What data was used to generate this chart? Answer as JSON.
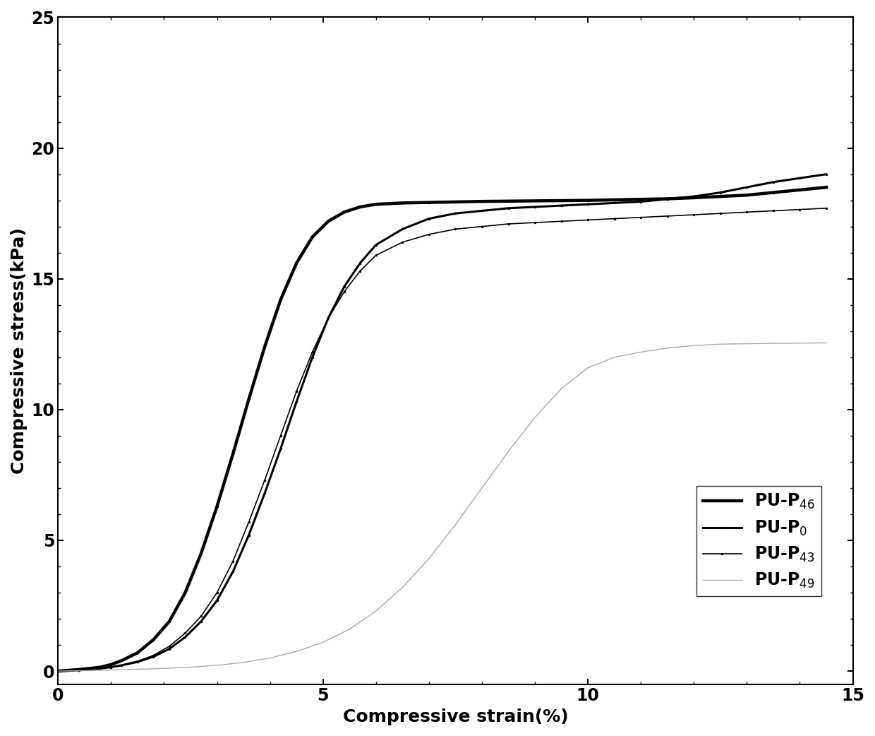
{
  "xlabel": "Compressive strain(%)",
  "ylabel": "Compressive stress(kPa)",
  "xlim": [
    0,
    15
  ],
  "ylim": [
    -0.5,
    25
  ],
  "xticks": [
    0,
    5,
    10,
    15
  ],
  "yticks": [
    0,
    5,
    10,
    15,
    20,
    25
  ],
  "background_color": "#ffffff",
  "legend_labels": [
    "PU-P$_0$",
    "PU-P$_{43}$",
    "PU-P$_{46}$",
    "PU-P$_{49}$"
  ],
  "series": {
    "PU_P0": {
      "color": "#000000",
      "linewidth": 2.2,
      "linestyle": "-",
      "marker": ".",
      "markersize": 3,
      "x": [
        0,
        0.2,
        0.4,
        0.6,
        0.8,
        1.0,
        1.2,
        1.5,
        1.8,
        2.1,
        2.4,
        2.7,
        3.0,
        3.3,
        3.6,
        3.9,
        4.2,
        4.5,
        4.8,
        5.1,
        5.4,
        5.7,
        6.0,
        6.5,
        7.0,
        7.5,
        8.0,
        8.5,
        9.0,
        9.5,
        10.0,
        10.5,
        11.0,
        11.5,
        12.0,
        12.5,
        13.0,
        13.5,
        14.0,
        14.5
      ],
      "y": [
        0,
        0.02,
        0.04,
        0.07,
        0.1,
        0.15,
        0.22,
        0.35,
        0.55,
        0.85,
        1.3,
        1.9,
        2.7,
        3.8,
        5.2,
        6.8,
        8.5,
        10.3,
        12.0,
        13.5,
        14.7,
        15.6,
        16.3,
        16.9,
        17.3,
        17.5,
        17.6,
        17.7,
        17.75,
        17.8,
        17.85,
        17.9,
        17.95,
        18.05,
        18.15,
        18.3,
        18.5,
        18.7,
        18.85,
        19.0
      ]
    },
    "PU_P43": {
      "color": "#000000",
      "linewidth": 1.2,
      "linestyle": "-",
      "marker": ".",
      "markersize": 3,
      "x": [
        0,
        0.2,
        0.4,
        0.6,
        0.8,
        1.0,
        1.2,
        1.5,
        1.8,
        2.1,
        2.4,
        2.7,
        3.0,
        3.3,
        3.6,
        3.9,
        4.2,
        4.5,
        4.8,
        5.1,
        5.4,
        5.7,
        6.0,
        6.5,
        7.0,
        7.5,
        8.0,
        8.5,
        9.0,
        9.5,
        10.0,
        10.5,
        11.0,
        11.5,
        12.0,
        12.5,
        13.0,
        13.5,
        14.0,
        14.5
      ],
      "y": [
        0,
        0.02,
        0.04,
        0.07,
        0.1,
        0.15,
        0.23,
        0.38,
        0.6,
        0.95,
        1.45,
        2.1,
        3.0,
        4.2,
        5.7,
        7.3,
        9.0,
        10.7,
        12.2,
        13.5,
        14.5,
        15.3,
        15.9,
        16.4,
        16.7,
        16.9,
        17.0,
        17.1,
        17.15,
        17.2,
        17.25,
        17.3,
        17.35,
        17.4,
        17.45,
        17.5,
        17.55,
        17.6,
        17.65,
        17.7
      ]
    },
    "PU_P46": {
      "color": "#000000",
      "linewidth": 3.2,
      "linestyle": "-",
      "marker": ".",
      "markersize": 3,
      "x": [
        0,
        0.2,
        0.4,
        0.6,
        0.8,
        1.0,
        1.2,
        1.5,
        1.8,
        2.1,
        2.4,
        2.7,
        3.0,
        3.3,
        3.6,
        3.9,
        4.2,
        4.5,
        4.8,
        5.1,
        5.4,
        5.7,
        6.0,
        6.5,
        7.0,
        7.5,
        8.0,
        8.5,
        9.0,
        9.5,
        10.0,
        10.5,
        11.0,
        11.5,
        12.0,
        12.5,
        13.0,
        13.5,
        14.0,
        14.5
      ],
      "y": [
        0,
        0.03,
        0.06,
        0.1,
        0.15,
        0.25,
        0.4,
        0.7,
        1.2,
        1.9,
        3.0,
        4.5,
        6.3,
        8.3,
        10.4,
        12.4,
        14.2,
        15.6,
        16.6,
        17.2,
        17.55,
        17.75,
        17.85,
        17.9,
        17.92,
        17.94,
        17.96,
        17.97,
        17.98,
        17.99,
        18.0,
        18.02,
        18.04,
        18.06,
        18.1,
        18.15,
        18.2,
        18.3,
        18.4,
        18.5
      ]
    },
    "PU_P49": {
      "color": "#aaaaaa",
      "linewidth": 1.0,
      "linestyle": "-",
      "x": [
        0,
        0.3,
        0.6,
        1.0,
        1.5,
        2.0,
        2.5,
        3.0,
        3.5,
        4.0,
        4.5,
        5.0,
        5.5,
        6.0,
        6.5,
        7.0,
        7.5,
        8.0,
        8.5,
        9.0,
        9.5,
        10.0,
        10.5,
        11.0,
        11.5,
        12.0,
        12.5,
        13.0,
        13.5,
        14.0,
        14.5
      ],
      "y": [
        0,
        0.01,
        0.02,
        0.04,
        0.07,
        0.1,
        0.15,
        0.22,
        0.33,
        0.5,
        0.75,
        1.1,
        1.6,
        2.3,
        3.2,
        4.3,
        5.6,
        7.0,
        8.4,
        9.7,
        10.8,
        11.6,
        12.0,
        12.2,
        12.35,
        12.45,
        12.5,
        12.52,
        12.53,
        12.54,
        12.55
      ]
    }
  }
}
